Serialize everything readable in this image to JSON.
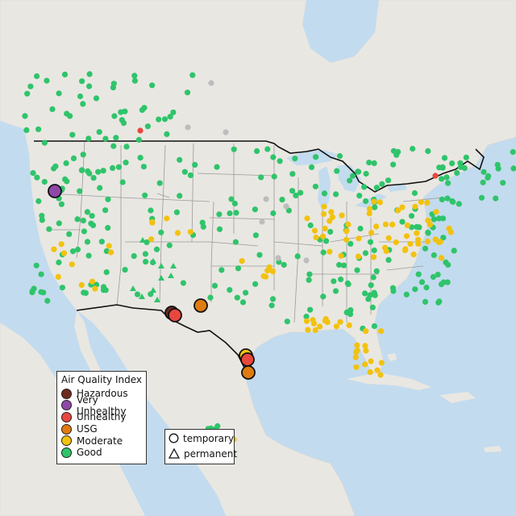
{
  "colors": {
    "ocean": "#c3dbee",
    "land": "#e9e7e2",
    "land_us": "#eae8e3",
    "border": "#111111",
    "state_line": "#9a9a9a",
    "hazardous": "#6e2a1e",
    "very_unhealthy": "#8e47a7",
    "unhealthy": "#e8473e",
    "usg": "#e07b10",
    "moderate": "#f2c20f",
    "good": "#2fc46b",
    "no_data": "#bdbdbd"
  },
  "legend": {
    "title": "Air Quality Index",
    "items": [
      {
        "label": "Hazardous",
        "key": "hazardous"
      },
      {
        "label": "Very Unhealthy",
        "key": "very_unhealthy"
      },
      {
        "label": "Unhealthy",
        "key": "unhealthy"
      },
      {
        "label": "USG",
        "key": "usg"
      },
      {
        "label": "Moderate",
        "key": "moderate"
      },
      {
        "label": "Good",
        "key": "good"
      }
    ]
  },
  "type_legend": {
    "items": [
      {
        "label": "temporary",
        "symbol": "circle-icon"
      },
      {
        "label": "permanent",
        "symbol": "triangle-icon"
      }
    ]
  }
}
